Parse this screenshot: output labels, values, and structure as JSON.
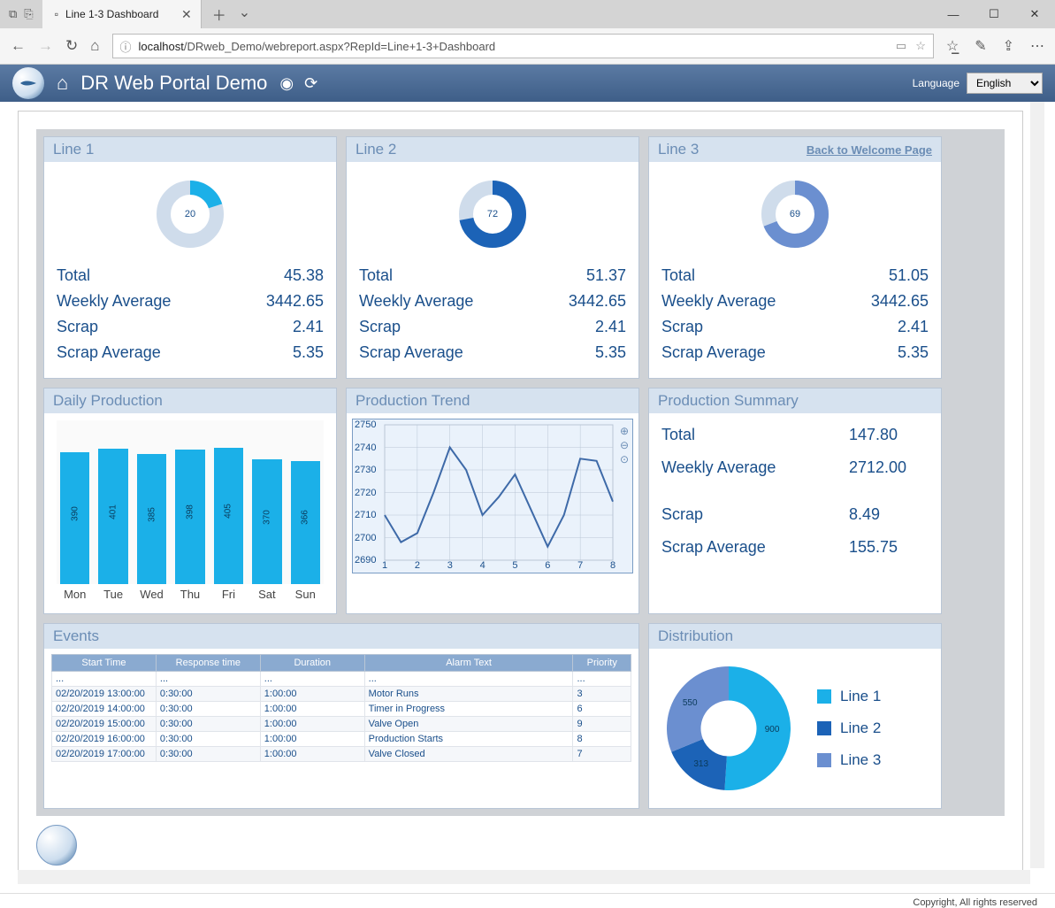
{
  "browser": {
    "tab_title": "Line 1-3 Dashboard",
    "url_prefix": "localhost",
    "url_path": "/DRweb_Demo/webreport.aspx?RepId=Line+1-3+Dashboard"
  },
  "portal": {
    "title": "DR Web Portal Demo",
    "language_label": "Language",
    "language_value": "English"
  },
  "lines": [
    {
      "title": "Line 1",
      "donut_pct": 20,
      "donut_color_fill": "#1bb0e8",
      "donut_color_track": "#cfdceb",
      "total_label": "Total",
      "total": "45.38",
      "weekly_label": "Weekly Average",
      "weekly": "3442.65",
      "scrap_label": "Scrap",
      "scrap": "2.41",
      "scrapavg_label": "Scrap Average",
      "scrapavg": "5.35"
    },
    {
      "title": "Line 2",
      "donut_pct": 72,
      "donut_color_fill": "#1c63b7",
      "donut_color_track": "#cfdceb",
      "total_label": "Total",
      "total": "51.37",
      "weekly_label": "Weekly Average",
      "weekly": "3442.65",
      "scrap_label": "Scrap",
      "scrap": "2.41",
      "scrapavg_label": "Scrap Average",
      "scrapavg": "5.35"
    },
    {
      "title": "Line 3",
      "donut_pct": 69,
      "donut_color_fill": "#6b8fd0",
      "donut_color_track": "#cfdceb",
      "back_link": "Back to Welcome Page",
      "total_label": "Total",
      "total": "51.05",
      "weekly_label": "Weekly Average",
      "weekly": "3442.65",
      "scrap_label": "Scrap",
      "scrap": "2.41",
      "scrapavg_label": "Scrap Average",
      "scrapavg": "5.35"
    }
  ],
  "daily_production": {
    "title": "Daily Production",
    "type": "bar",
    "bar_color": "#1bb0e8",
    "bg_color": "#fafafa",
    "ymax": 420,
    "categories": [
      "Mon",
      "Tue",
      "Wed",
      "Thu",
      "Fri",
      "Sat",
      "Sun"
    ],
    "values": [
      390,
      401,
      385,
      398,
      405,
      370,
      366
    ]
  },
  "production_trend": {
    "title": "Production Trend",
    "type": "line",
    "line_color": "#3e6aa8",
    "bg_color": "#eaf2fb",
    "grid_color": "#b9c6d6",
    "xlim": [
      1,
      8
    ],
    "ylim": [
      2690,
      2750
    ],
    "yticks": [
      2690,
      2700,
      2710,
      2720,
      2730,
      2740,
      2750
    ],
    "xticks": [
      1,
      2,
      3,
      4,
      5,
      6,
      7,
      8
    ],
    "points": [
      [
        1,
        2710
      ],
      [
        1.5,
        2698
      ],
      [
        2,
        2702
      ],
      [
        2.5,
        2720
      ],
      [
        3,
        2740
      ],
      [
        3.5,
        2730
      ],
      [
        4,
        2710
      ],
      [
        4.5,
        2718
      ],
      [
        5,
        2728
      ],
      [
        5.5,
        2712
      ],
      [
        6,
        2696
      ],
      [
        6.5,
        2710
      ],
      [
        7,
        2735
      ],
      [
        7.5,
        2734
      ],
      [
        8,
        2716
      ]
    ]
  },
  "production_summary": {
    "title": "Production Summary",
    "rows": [
      {
        "label": "Total",
        "value": "147.80"
      },
      {
        "label": "Weekly Average",
        "value": "2712.00"
      },
      {
        "label": "Scrap",
        "value": "8.49"
      },
      {
        "label": "Scrap Average",
        "value": "155.75"
      }
    ]
  },
  "events": {
    "title": "Events",
    "columns": [
      "Start Time",
      "Response time",
      "Duration",
      "Alarm Text",
      "Priority"
    ],
    "col_widths": [
      "18%",
      "18%",
      "18%",
      "36%",
      "10%"
    ],
    "ellipsis": "...",
    "rows": [
      [
        "02/20/2019 13:00:00",
        "0:30:00",
        "1:00:00",
        "Motor Runs",
        "3"
      ],
      [
        "02/20/2019 14:00:00",
        "0:30:00",
        "1:00:00",
        "Timer in Progress",
        "6"
      ],
      [
        "02/20/2019 15:00:00",
        "0:30:00",
        "1:00:00",
        "Valve Open",
        "9"
      ],
      [
        "02/20/2019 16:00:00",
        "0:30:00",
        "1:00:00",
        "Production Starts",
        "8"
      ],
      [
        "02/20/2019 17:00:00",
        "0:30:00",
        "1:00:00",
        "Valve Closed",
        "7"
      ]
    ]
  },
  "distribution": {
    "title": "Distribution",
    "type": "pie",
    "inner_radius_ratio": 0.45,
    "slices": [
      {
        "label": "Line 1",
        "value": 900,
        "color": "#1bb0e8"
      },
      {
        "label": "Line 2",
        "value": 313,
        "color": "#1c63b7"
      },
      {
        "label": "Line 3",
        "value": 550,
        "color": "#6b8fd0"
      }
    ]
  },
  "copyright": "Copyright, All rights reserved"
}
